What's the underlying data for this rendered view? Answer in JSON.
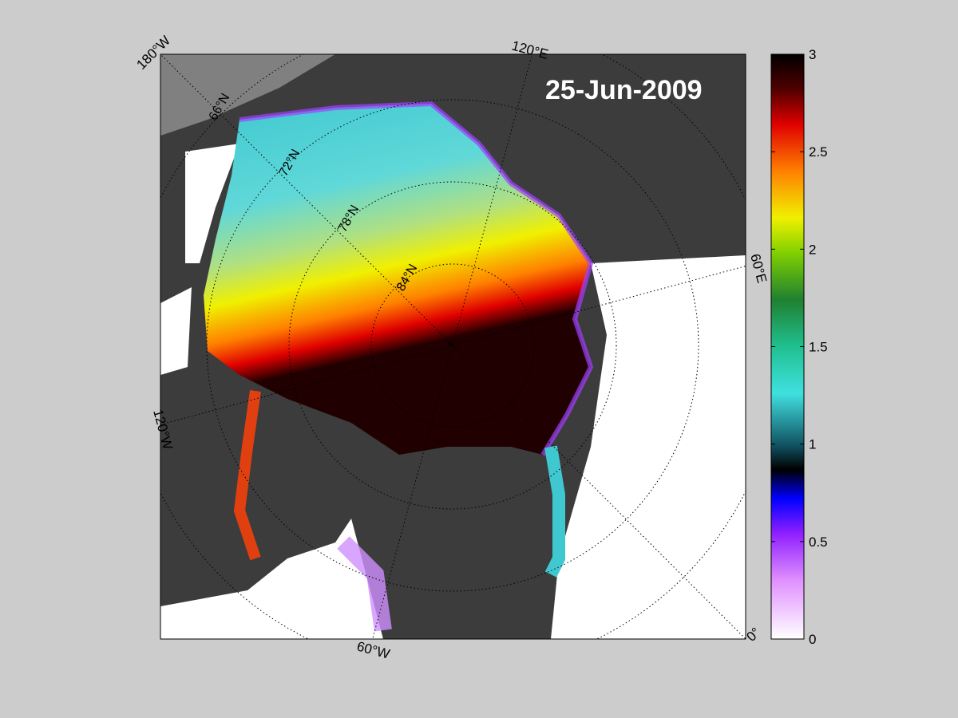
{
  "map": {
    "date": "25-Jun-2009",
    "longitude_labels": {
      "w180": "180°W",
      "e120": "120°E",
      "e60": "60°E",
      "w120": "120°W",
      "w60": "60°W",
      "zero": "0°"
    },
    "latitude_labels": {
      "n66": "66°N",
      "n72": "72°N",
      "n78": "78°N",
      "n84": "84°N"
    },
    "colors": {
      "background": "#cccccc",
      "land": "#3c3c3c",
      "ocean_open": "#ffffff",
      "outside_grid": "#808080"
    }
  },
  "colorbar": {
    "min": 0,
    "max": 3,
    "tick_labels": [
      "0",
      "0.5",
      "1",
      "1.5",
      "2",
      "2.5",
      "3"
    ],
    "colors": [
      "#ffffff",
      "#8000ff",
      "#0000ff",
      "#000000",
      "#30e0e0",
      "#20d080",
      "#208020",
      "#80e000",
      "#f0f000",
      "#ff8000",
      "#e00000",
      "#000000"
    ]
  }
}
